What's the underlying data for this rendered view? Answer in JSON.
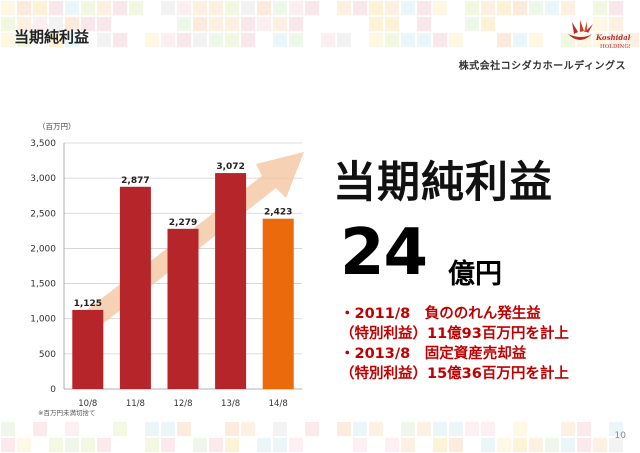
{
  "header": {
    "title": "当期純利益"
  },
  "company": {
    "logo_text": "Koshidaka HOLDINGS",
    "name": "株式会社コシダカホールディングス"
  },
  "chart_data": {
    "type": "bar",
    "unit_label": "（百万円）",
    "categories": [
      "10/8",
      "11/8",
      "12/8",
      "13/8",
      "14/8"
    ],
    "values": [
      1125,
      2877,
      2279,
      3072,
      2423
    ],
    "value_labels": [
      "1,125",
      "2,877",
      "2,279",
      "3,072",
      "2,423"
    ],
    "bar_colors": [
      "#b5252a",
      "#b5252a",
      "#b5252a",
      "#b5252a",
      "#ea6a0c"
    ],
    "ylim": [
      0,
      3500
    ],
    "y_ticks": [
      0,
      500,
      1000,
      1500,
      2000,
      2500,
      3000,
      3500
    ],
    "y_tick_labels": [
      "0",
      "500",
      "1,000",
      "1,500",
      "2,000",
      "2,500",
      "3,000",
      "3,500"
    ],
    "footnote": "※百万円未満切捨て",
    "grid": true,
    "trend_arrow": true
  },
  "headline": {
    "title": "当期純利益",
    "number": "24",
    "unit": "億円"
  },
  "notes": [
    "・2011/8　負ののれん発生益",
    "（特別利益）11億93百万円を計上",
    "・2013/8　固定資産売却益",
    "（特別利益）15億36百万円を計上"
  ],
  "page": {
    "number": "10"
  },
  "colors": {
    "accent_red": "#b5252a",
    "accent_orange": "#ea6a0c",
    "note_red": "#c00000"
  }
}
